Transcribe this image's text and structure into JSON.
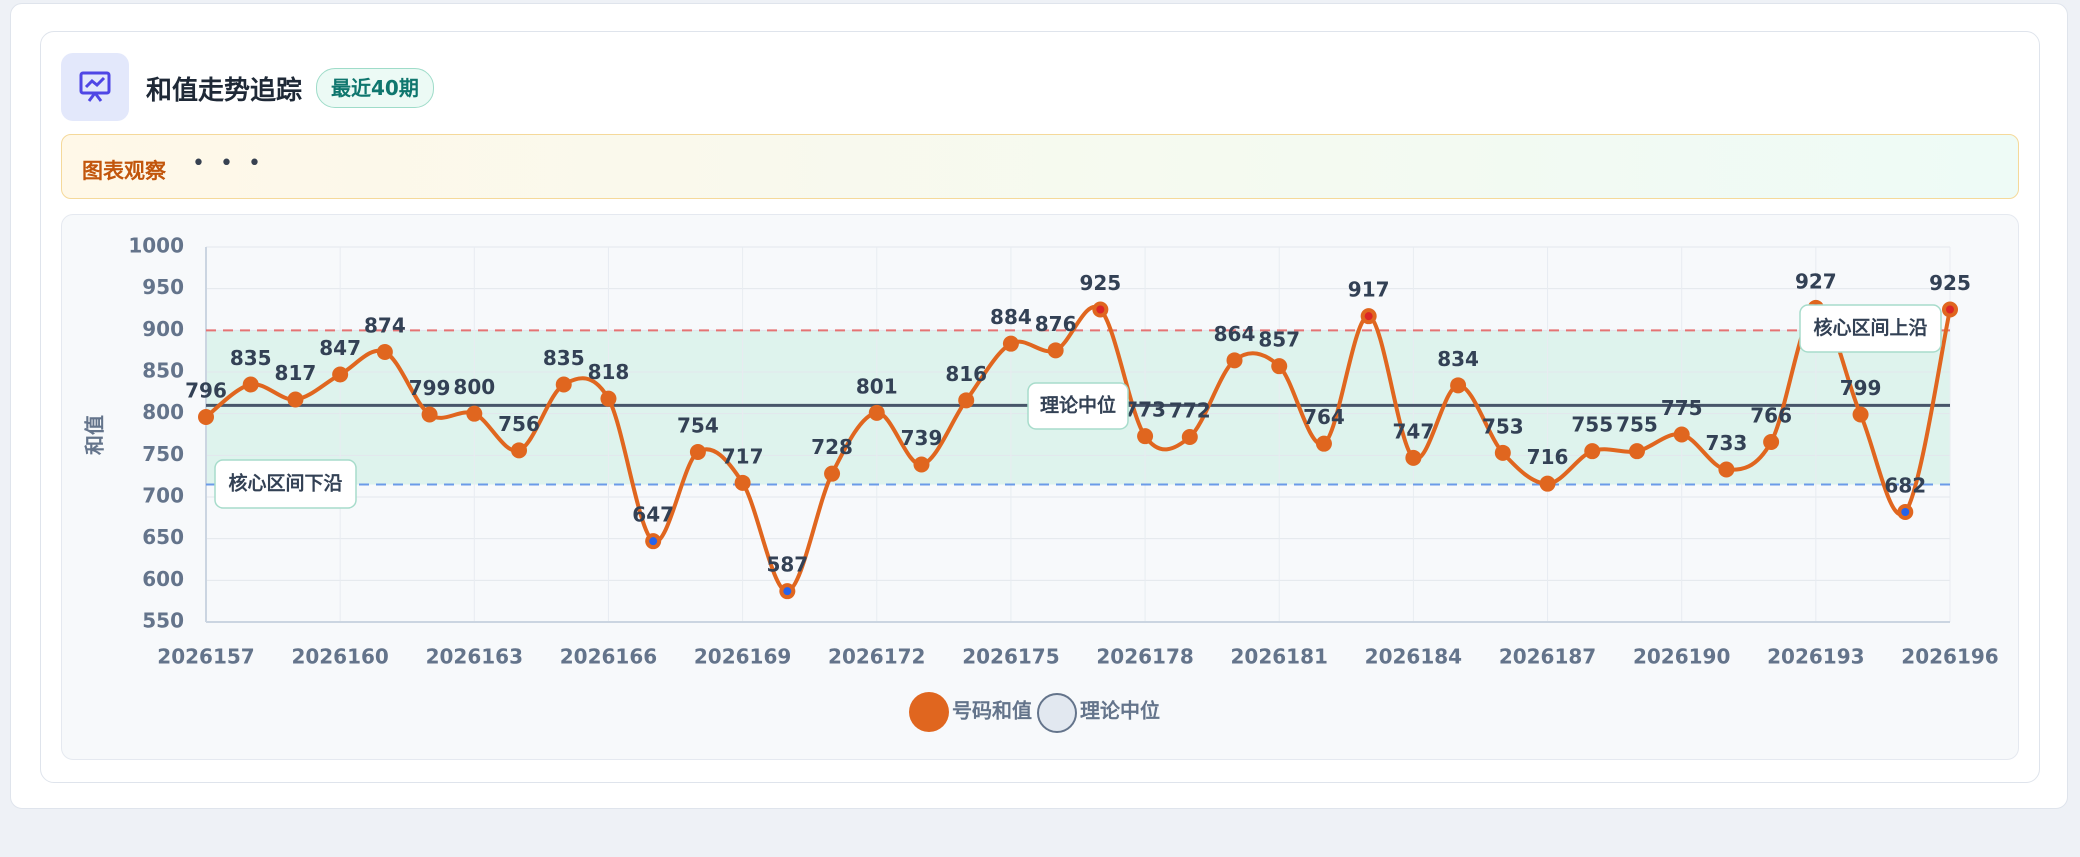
{
  "header": {
    "title": "和值走势追踪",
    "badge": "最近40期"
  },
  "notice": {
    "label": "图表观察",
    "dots": "• • •"
  },
  "chart_data": {
    "type": "line",
    "y_label": "和值",
    "categories": [
      "2026157",
      null,
      null,
      "2026160",
      null,
      null,
      "2026163",
      null,
      null,
      "2026166",
      null,
      null,
      "2026169",
      null,
      null,
      "2026172",
      null,
      null,
      "2026175",
      null,
      null,
      "2026178",
      null,
      null,
      "2026181",
      null,
      null,
      "2026184",
      null,
      null,
      "2026187",
      null,
      null,
      "2026190",
      null,
      null,
      "2026193",
      null,
      null,
      "2026196"
    ],
    "series": [
      {
        "name": "号码和值",
        "color": "#e0661f",
        "values": [
          796,
          835,
          817,
          847,
          874,
          799,
          800,
          756,
          835,
          818,
          647,
          754,
          717,
          587,
          728,
          801,
          739,
          816,
          884,
          876,
          925,
          773,
          772,
          864,
          857,
          764,
          917,
          747,
          834,
          753,
          716,
          755,
          755,
          775,
          733,
          766,
          927,
          799,
          682,
          925
        ]
      }
    ],
    "reference_lines": [
      {
        "label": "理论中位",
        "value": 810,
        "color": "#475569",
        "dash": false
      },
      {
        "label": "核心区间上沿",
        "value": 900,
        "color": "#e57373",
        "dash": true
      },
      {
        "label": "核心区间下沿",
        "value": 715,
        "color": "#6b9be8",
        "dash": true
      }
    ],
    "band_color": "#d6f0e8",
    "ylim": [
      550,
      1000
    ],
    "yticks": [
      550,
      600,
      650,
      700,
      750,
      800,
      850,
      900,
      950,
      1000
    ],
    "grid": true
  }
}
